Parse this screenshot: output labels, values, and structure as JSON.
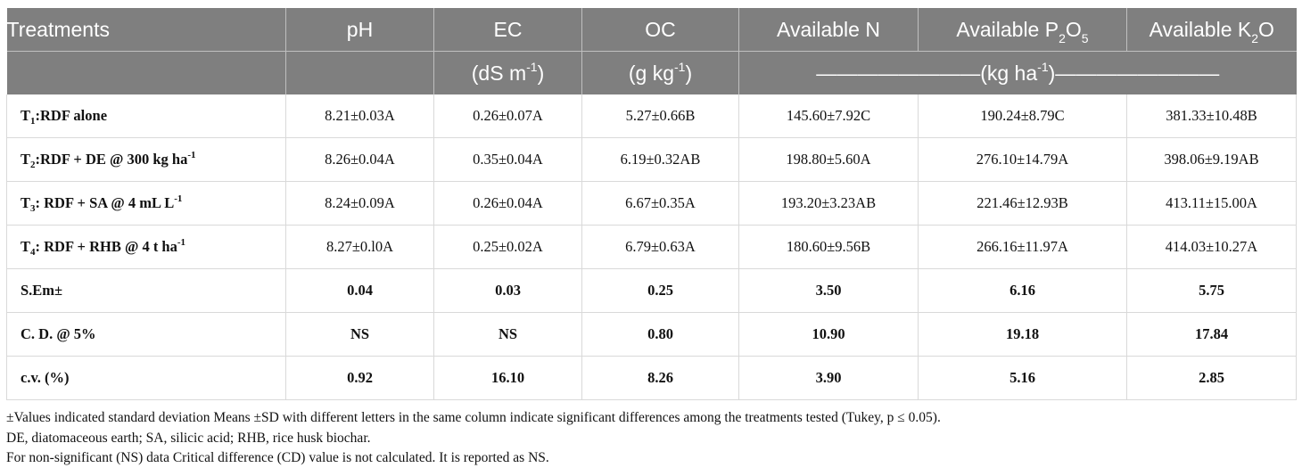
{
  "header": {
    "treatments": "Treatments",
    "ph": "pH",
    "ec": "EC",
    "oc": "OC",
    "avail_n": "Available N",
    "avail_p_pre": "Available P",
    "avail_p_sub1": "2",
    "avail_p_mid": "O",
    "avail_p_sub2": "5",
    "avail_k_pre": "Available K",
    "avail_k_sub": "2",
    "avail_k_post": "O",
    "ec_unit_pre": "(dS m",
    "ec_unit_sup": "-1",
    "ec_unit_post": ")",
    "oc_unit_pre": "(g kg",
    "oc_unit_sup": "-1",
    "oc_unit_post": ")",
    "kg_unit_pre": "————————(kg ha",
    "kg_unit_sup": "-1",
    "kg_unit_post": ")————————"
  },
  "rows": [
    {
      "t_pre": "T",
      "t_sub": "1",
      "t_main": ":RDF alone",
      "t_sup": "",
      "ph": "8.21±0.03A",
      "ec": "0.26±0.07A",
      "oc": "5.27±0.66B",
      "n": "145.60±7.92C",
      "p": "190.24±8.79C",
      "k": "381.33±10.48B"
    },
    {
      "t_pre": "T",
      "t_sub": "2",
      "t_main": ":RDF + DE @ 300 kg ha",
      "t_sup": "-1",
      "ph": "8.26±0.04A",
      "ec": "0.35±0.04A",
      "oc": "6.19±0.32AB",
      "n": "198.80±5.60A",
      "p": "276.10±14.79A",
      "k": "398.06±9.19AB"
    },
    {
      "t_pre": "T",
      "t_sub": "3",
      "t_main": ": RDF + SA @ 4 mL L",
      "t_sup": "-1",
      "ph": "8.24±0.09A",
      "ec": "0.26±0.04A",
      "oc": "6.67±0.35A",
      "n": "193.20±3.23AB",
      "p": "221.46±12.93B",
      "k": "413.11±15.00A"
    },
    {
      "t_pre": "T",
      "t_sub": "4",
      "t_main": ": RDF + RHB @ 4 t ha",
      "t_sup": "-1",
      "ph": "8.27±0.l0A",
      "ec": "0.25±0.02A",
      "oc": "6.79±0.63A",
      "n": "180.60±9.56B",
      "p": "266.16±11.97A",
      "k": "414.03±10.27A"
    }
  ],
  "stats": [
    {
      "label": "S.Em±",
      "ph": "0.04",
      "ec": "0.03",
      "oc": "0.25",
      "n": "3.50",
      "p": "6.16",
      "k": "5.75"
    },
    {
      "label": "C. D. @ 5%",
      "ph": "NS",
      "ec": "NS",
      "oc": "0.80",
      "n": "10.90",
      "p": "19.18",
      "k": "17.84"
    },
    {
      "label": "c.v. (%)",
      "ph": "0.92",
      "ec": "16.10",
      "oc": "8.26",
      "n": "3.90",
      "p": "5.16",
      "k": "2.85"
    }
  ],
  "notes": [
    "±Values indicated standard deviation Means ±SD with different letters in the same column indicate significant differences among the treatments tested (Tukey, p ≤ 0.05).",
    "DE, diatomaceous earth; SA, silicic acid; RHB, rice husk biochar.",
    "For non-significant (NS) data Critical difference (CD) value is not calculated. It is reported as NS."
  ],
  "colors": {
    "header_bg": "#7f7f7f",
    "header_text": "#ffffff",
    "grid": "#d9d9d9"
  }
}
